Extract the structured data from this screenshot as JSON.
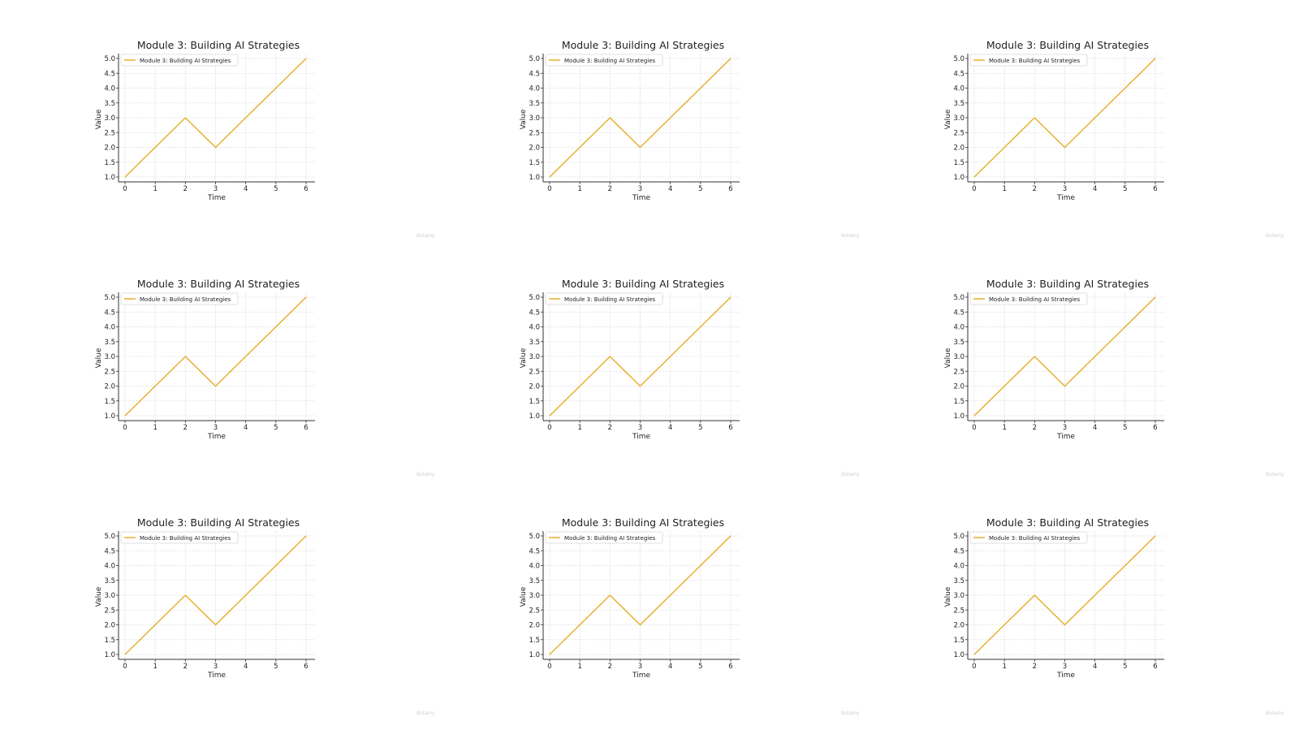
{
  "charts": [
    {
      "chart_data": {
        "type": "line",
        "title": "Module 3: Building AI Strategies",
        "xlabel": "Time",
        "ylabel": "Value",
        "xlim": [
          0,
          6
        ],
        "ylim": [
          1.0,
          5.0
        ],
        "xticks": [
          "0",
          "1",
          "2",
          "3",
          "4",
          "5",
          "6"
        ],
        "yticks": [
          "1.0",
          "1.5",
          "2.0",
          "2.5",
          "3.0",
          "3.5",
          "4.0",
          "4.5",
          "5.0"
        ],
        "grid": true,
        "legend_position": "top-left",
        "series": [
          {
            "name": "Module 3: Building AI Strategies",
            "color": "#e6b02e",
            "x": [
              0,
              1,
              2,
              3,
              4,
              5,
              6
            ],
            "y": [
              1,
              2,
              3,
              2,
              3,
              4,
              5
            ]
          }
        ]
      }
    }
  ],
  "tile_count": 9,
  "watermark": "Bolamy"
}
